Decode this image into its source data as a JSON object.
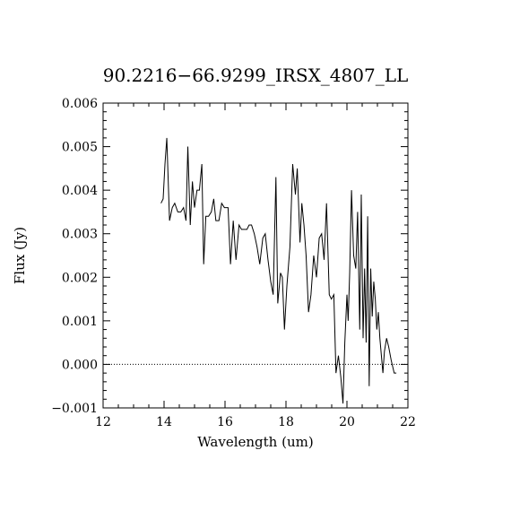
{
  "chart_data": {
    "type": "line",
    "title": "90.2216−66.9299_IRSX_4807_LL",
    "xlabel": "Wavelength (um)",
    "ylabel": "Flux (Jy)",
    "xlim": [
      12,
      22
    ],
    "ylim": [
      -0.001,
      0.006
    ],
    "xticks": [
      12,
      14,
      16,
      18,
      20,
      22
    ],
    "xtick_labels": [
      "12",
      "14",
      "16",
      "18",
      "20",
      "22"
    ],
    "yticks": [
      -0.001,
      0,
      0.001,
      0.002,
      0.003,
      0.004,
      0.005,
      0.006
    ],
    "ytick_labels": [
      "−0.001",
      "0.000",
      "0.001",
      "0.002",
      "0.003",
      "0.004",
      "0.005",
      "0.006"
    ],
    "zero_line": {
      "y": 0,
      "style": "dotted"
    },
    "series": [
      {
        "color": "#000000",
        "x": [
          13.9,
          13.97,
          14.03,
          14.09,
          14.18,
          14.27,
          14.35,
          14.45,
          14.55,
          14.64,
          14.72,
          14.78,
          14.86,
          14.93,
          15.0,
          15.08,
          15.16,
          15.24,
          15.3,
          15.37,
          15.46,
          15.55,
          15.63,
          15.7,
          15.8,
          15.89,
          15.98,
          16.1,
          16.18,
          16.27,
          16.36,
          16.46,
          16.54,
          16.63,
          16.72,
          16.79,
          16.87,
          16.96,
          17.05,
          17.14,
          17.24,
          17.32,
          17.41,
          17.5,
          17.58,
          17.67,
          17.73,
          17.82,
          17.88,
          17.95,
          18.03,
          18.13,
          18.22,
          18.31,
          18.37,
          18.46,
          18.52,
          18.59,
          18.66,
          18.74,
          18.82,
          18.91,
          19.0,
          19.09,
          19.17,
          19.25,
          19.33,
          19.42,
          19.49,
          19.57,
          19.64,
          19.72,
          19.8,
          19.87,
          19.93,
          20.0,
          20.04,
          20.09,
          20.15,
          20.22,
          20.29,
          20.35,
          20.42,
          20.47,
          20.53,
          20.58,
          20.63,
          20.68,
          20.73,
          20.78,
          20.83,
          20.88,
          20.93,
          20.98,
          21.03,
          21.08,
          21.13,
          21.18,
          21.23,
          21.3,
          21.37,
          21.45,
          21.55,
          21.62
        ],
        "y": [
          0.0037,
          0.0038,
          0.0046,
          0.0052,
          0.0033,
          0.0036,
          0.0037,
          0.0035,
          0.0035,
          0.0036,
          0.0033,
          0.005,
          0.0032,
          0.0042,
          0.0036,
          0.004,
          0.004,
          0.0046,
          0.0023,
          0.0034,
          0.0034,
          0.0035,
          0.0038,
          0.0033,
          0.0033,
          0.0037,
          0.0036,
          0.0036,
          0.0023,
          0.0033,
          0.0024,
          0.0032,
          0.0031,
          0.0031,
          0.0031,
          0.0032,
          0.0032,
          0.003,
          0.0027,
          0.0023,
          0.0029,
          0.003,
          0.0024,
          0.0019,
          0.0016,
          0.0043,
          0.0014,
          0.0021,
          0.002,
          0.0008,
          0.0018,
          0.0027,
          0.0046,
          0.0039,
          0.0045,
          0.0028,
          0.0037,
          0.0032,
          0.0025,
          0.0012,
          0.0016,
          0.0025,
          0.002,
          0.0029,
          0.003,
          0.0024,
          0.0037,
          0.0016,
          0.0015,
          0.0016,
          -0.0002,
          0.0002,
          -0.0003,
          -0.0009,
          0.0005,
          0.0016,
          0.001,
          0.0021,
          0.004,
          0.0025,
          0.0022,
          0.0035,
          0.0008,
          0.0039,
          0.0006,
          0.0022,
          0.0005,
          0.0034,
          -0.0005,
          0.0022,
          0.0011,
          0.0019,
          0.0015,
          0.0008,
          0.0012,
          0.0006,
          0.0002,
          -0.0002,
          0.0003,
          0.0006,
          0.0004,
          0.0001,
          -0.0002,
          -0.0002
        ]
      }
    ],
    "grid": false,
    "legend": "none"
  }
}
